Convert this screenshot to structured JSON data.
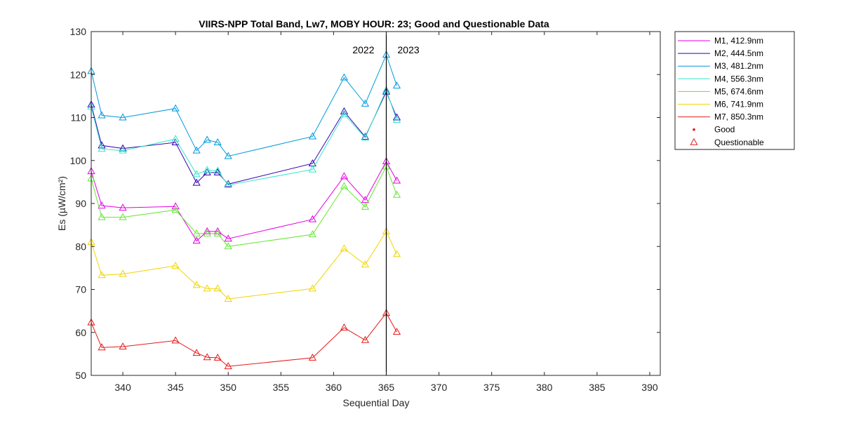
{
  "chart_data": {
    "type": "line",
    "title": "VIIRS-NPP Total Band,  Lw7, MOBY HOUR: 23;  Good and Questionable Data",
    "xlabel": "Sequential Day",
    "ylabel": "Es (µW/cm²)",
    "xlim": [
      337,
      391
    ],
    "ylim": [
      50,
      130
    ],
    "xticks": [
      340,
      345,
      350,
      355,
      360,
      365,
      370,
      375,
      380,
      385,
      390
    ],
    "yticks": [
      50,
      60,
      70,
      80,
      90,
      100,
      110,
      120,
      130
    ],
    "grid": false,
    "legend_position": "outside-top-right",
    "divider": {
      "x": 365,
      "left_label": "2022",
      "right_label": "2023"
    },
    "x": [
      337,
      338,
      340,
      345,
      347,
      348,
      349,
      350,
      358,
      361,
      363,
      365,
      366
    ],
    "series": [
      {
        "name": "M1, 412.9nm",
        "color": "#e600e6",
        "values": [
          97.5,
          89.5,
          89,
          89.3,
          81.3,
          83.5,
          83.5,
          81.8,
          86.3,
          96.3,
          90.8,
          99.8,
          95.3
        ]
      },
      {
        "name": "M2, 444.5nm",
        "color": "#3300b3",
        "values": [
          113,
          103.5,
          102.8,
          104.2,
          94.8,
          97.2,
          97.2,
          94.5,
          99.3,
          111.4,
          105.5,
          116,
          110
        ]
      },
      {
        "name": "M3, 481.2nm",
        "color": "#0099dd",
        "values": [
          120.8,
          110.5,
          110,
          112.1,
          102.3,
          104.8,
          104.2,
          101,
          105.6,
          119.3,
          113.2,
          124.6,
          117.4
        ]
      },
      {
        "name": "M4, 556.3nm",
        "color": "#33e6cc",
        "values": [
          112.5,
          102.7,
          102.3,
          105,
          96.8,
          97.8,
          97.6,
          94.3,
          97.9,
          110.8,
          105.3,
          116.4,
          109.4
        ]
      },
      {
        "name": "M5, 674.6nm",
        "color": "#66e633",
        "values": [
          95.8,
          86.8,
          86.8,
          88.5,
          83,
          83,
          83,
          80,
          82.8,
          94,
          89.2,
          98.6,
          92
        ]
      },
      {
        "name": "M6, 741.9nm",
        "color": "#f2d400",
        "values": [
          81,
          73.3,
          73.6,
          75.5,
          71,
          70.2,
          70.2,
          67.8,
          70.2,
          79.5,
          75.8,
          83.5,
          78.2
        ]
      },
      {
        "name": "M7, 850.3nm",
        "color": "#e61a1a",
        "values": [
          62.3,
          56.5,
          56.7,
          58.1,
          55.2,
          54.2,
          54.1,
          52.1,
          54.1,
          61.1,
          58.2,
          64.5,
          60.1
        ]
      }
    ],
    "marker_legend": [
      {
        "name": "Good",
        "marker": "dot",
        "color": "#e61a1a"
      },
      {
        "name": "Questionable",
        "marker": "triangle",
        "color": "#e61a1a"
      }
    ]
  }
}
